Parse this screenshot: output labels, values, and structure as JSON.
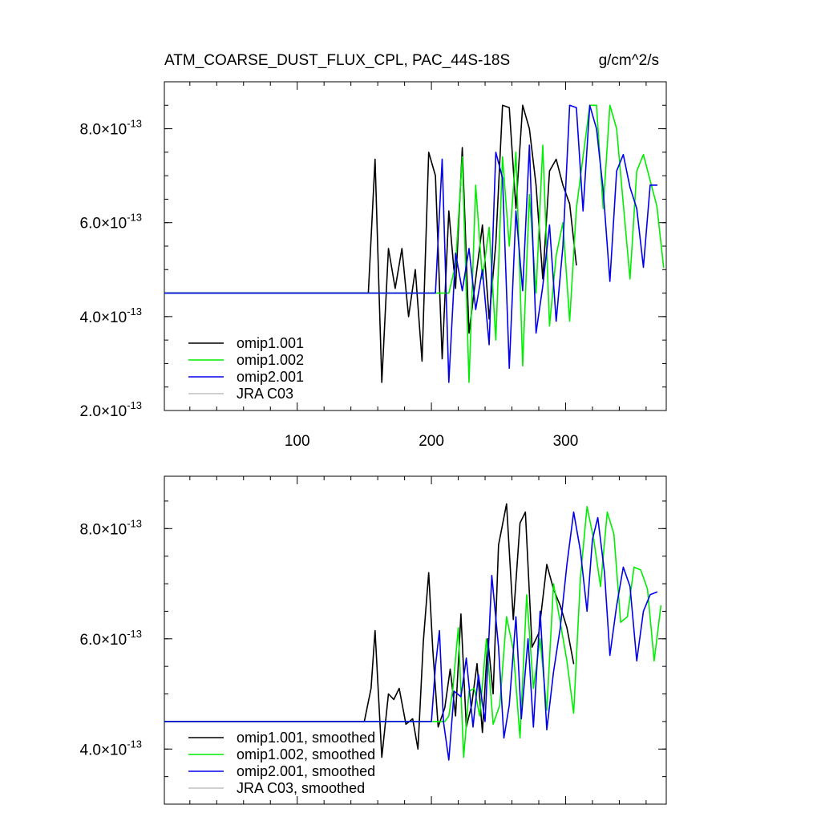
{
  "chart_data": [
    {
      "type": "line",
      "title": "ATM_COARSE_DUST_FLUX_CPL, PAC_44S-18S",
      "units": "g/cm^2/s",
      "xlabel": "",
      "ylabel": "",
      "xlim": [
        1,
        375
      ],
      "ylim": [
        2e-13,
        9e-13
      ],
      "x_ticks": [
        100,
        200,
        300
      ],
      "y_ticks": [
        {
          "value": 2e-13,
          "mantissa": "2.0",
          "exponent": "-13"
        },
        {
          "value": 4e-13,
          "mantissa": "4.0",
          "exponent": "-13"
        },
        {
          "value": 6e-13,
          "mantissa": "6.0",
          "exponent": "-13"
        },
        {
          "value": 8e-13,
          "mantissa": "8.0",
          "exponent": "-13"
        }
      ],
      "legend_position": "bottom-left",
      "series": [
        {
          "name": "omip1.001",
          "color": "#000000",
          "x": [
            1,
            153,
            158,
            163,
            168,
            173,
            178,
            183,
            188,
            193,
            198,
            203,
            208,
            213,
            218,
            223,
            228,
            233,
            238,
            243,
            248,
            253,
            258,
            263,
            268,
            273,
            278,
            283,
            288,
            293,
            298,
            303,
            308
          ],
          "y": [
            4.5e-13,
            4.5e-13,
            7.35e-13,
            2.6e-13,
            5.45e-13,
            4.6e-13,
            5.45e-13,
            4e-13,
            5e-13,
            3.05e-13,
            7.5e-13,
            7e-13,
            3.1e-13,
            6.25e-13,
            4.6e-13,
            7.6e-13,
            3.65e-13,
            4.8e-13,
            5.95e-13,
            3.95e-13,
            5.55e-13,
            8.5e-13,
            8.45e-13,
            6.3e-13,
            8.5e-13,
            8e-13,
            6.8e-13,
            4.8e-13,
            7.1e-13,
            7.35e-13,
            6.8e-13,
            6.4e-13,
            5.1e-13
          ]
        },
        {
          "name": "omip1.002",
          "color": "#00ee00",
          "x": [
            1,
            213,
            218,
            223,
            228,
            233,
            238,
            243,
            248,
            253,
            258,
            263,
            268,
            273,
            278,
            283,
            288,
            293,
            298,
            303,
            308,
            313,
            318,
            323,
            328,
            333,
            338,
            343,
            348,
            353,
            358,
            363,
            368,
            373
          ],
          "y": [
            4.5e-13,
            4.5e-13,
            5.1e-13,
            7.4e-13,
            2.6e-13,
            6.8e-13,
            4.8e-13,
            5.9e-13,
            3.5e-13,
            7.4e-13,
            5.5e-13,
            7.5e-13,
            2.95e-13,
            6.6e-13,
            4.5e-13,
            7.65e-13,
            3.8e-13,
            5.3e-13,
            6e-13,
            3.9e-13,
            6.3e-13,
            7.4e-13,
            8.5e-13,
            8.5e-13,
            6.3e-13,
            8.5e-13,
            8e-13,
            6.4e-13,
            4.8e-13,
            7.1e-13,
            7.45e-13,
            6.9e-13,
            6.35e-13,
            5.05e-13
          ]
        },
        {
          "name": "omip2.001",
          "color": "#0000ee",
          "x": [
            1,
            203,
            208,
            213,
            218,
            223,
            228,
            233,
            238,
            243,
            248,
            253,
            258,
            263,
            268,
            273,
            278,
            283,
            288,
            293,
            298,
            303,
            308,
            313,
            318,
            323,
            328,
            333,
            338,
            343,
            348,
            353,
            358,
            363,
            368
          ],
          "y": [
            4.5e-13,
            4.5e-13,
            7.35e-13,
            2.6e-13,
            5.35e-13,
            4.55e-13,
            5.45e-13,
            4.15e-13,
            5e-13,
            3.4e-13,
            7.5e-13,
            6.95e-13,
            2.9e-13,
            6.25e-13,
            4.55e-13,
            7.65e-13,
            3.65e-13,
            4.65e-13,
            5.95e-13,
            3.9e-13,
            5.5e-13,
            8.5e-13,
            8.45e-13,
            6.25e-13,
            8.5e-13,
            8e-13,
            6.7e-13,
            4.75e-13,
            7.1e-13,
            7.45e-13,
            6.75e-13,
            6.3e-13,
            5.05e-13,
            6.8e-13,
            6.8e-13
          ]
        },
        {
          "name": "JRA C03",
          "color": "#c0c0c0",
          "x": [],
          "y": []
        }
      ]
    },
    {
      "type": "line",
      "title": "",
      "xlabel": "",
      "ylabel": "",
      "xlim": [
        1,
        375
      ],
      "ylim": [
        3e-13,
        8.95e-13
      ],
      "x_ticks": [
        100,
        200,
        300
      ],
      "y_ticks": [
        {
          "value": 4e-13,
          "mantissa": "4.0",
          "exponent": "-13"
        },
        {
          "value": 6e-13,
          "mantissa": "6.0",
          "exponent": "-13"
        },
        {
          "value": 8e-13,
          "mantissa": "8.0",
          "exponent": "-13"
        }
      ],
      "legend_position": "bottom-left",
      "series": [
        {
          "name": "omip1.001, smoothed",
          "color": "#000000",
          "x": [
            1,
            150,
            155,
            158,
            163,
            168,
            172,
            176,
            181,
            186,
            190,
            194,
            198,
            201,
            205,
            210,
            214,
            218,
            222,
            226,
            230,
            234,
            238,
            242,
            246,
            250,
            256,
            261,
            266,
            270,
            275,
            280,
            286,
            291,
            296,
            301,
            306
          ],
          "y": [
            4.5e-13,
            4.5e-13,
            5.1e-13,
            6.15e-13,
            3.85e-13,
            5e-13,
            4.9e-13,
            5.1e-13,
            4.45e-13,
            4.55e-13,
            4e-13,
            5.95e-13,
            7.2e-13,
            5.8e-13,
            4.4e-13,
            4.75e-13,
            5.45e-13,
            4.6e-13,
            6.45e-13,
            4.4e-13,
            4.8e-13,
            5.55e-13,
            4.3e-13,
            6e-13,
            5e-13,
            7.7e-13,
            8.45e-13,
            6.35e-13,
            8.1e-13,
            8.3e-13,
            5.85e-13,
            6.1e-13,
            7.35e-13,
            6.9e-13,
            6.6e-13,
            6.2e-13,
            5.55e-13
          ]
        },
        {
          "name": "omip1.002, smoothed",
          "color": "#00ee00",
          "x": [
            1,
            210,
            213,
            216,
            220,
            224,
            228,
            232,
            236,
            241,
            246,
            251,
            256,
            261,
            266,
            271,
            276,
            281,
            286,
            291,
            296,
            301,
            306,
            311,
            316,
            321,
            326,
            331,
            336,
            341,
            346,
            351,
            356,
            361,
            366,
            371
          ],
          "y": [
            4.5e-13,
            4.5e-13,
            4.6e-13,
            5.1e-13,
            6.2e-13,
            3.85e-13,
            5.05e-13,
            5.1e-13,
            4.6e-13,
            6e-13,
            4.45e-13,
            4.8e-13,
            6.4e-13,
            5.8e-13,
            4.2e-13,
            6.8e-13,
            5.1e-13,
            6e-13,
            4.7e-13,
            7e-13,
            6.3e-13,
            5.6e-13,
            4.65e-13,
            7.1e-13,
            8.4e-13,
            7.8e-13,
            6.95e-13,
            8.3e-13,
            7.9e-13,
            6.3e-13,
            6.4e-13,
            7.3e-13,
            7.25e-13,
            6.9e-13,
            5.6e-13,
            6.6e-13
          ]
        },
        {
          "name": "omip2.001, smoothed",
          "color": "#0000ee",
          "x": [
            1,
            200,
            203,
            206,
            209,
            213,
            217,
            222,
            226,
            231,
            235,
            240,
            245,
            250,
            254,
            258,
            263,
            267,
            272,
            276,
            281,
            286,
            291,
            296,
            301,
            306,
            311,
            316,
            320,
            324,
            329,
            333,
            338,
            343,
            348,
            353,
            358,
            363,
            368
          ],
          "y": [
            4.5e-13,
            4.5e-13,
            5.5e-13,
            6.15e-13,
            4.5e-13,
            3.8e-13,
            5.05e-13,
            4.95e-13,
            5.65e-13,
            4.4e-13,
            5.35e-13,
            4.5e-13,
            7.15e-13,
            5.85e-13,
            4.2e-13,
            4.8e-13,
            6.4e-13,
            4.55e-13,
            6e-13,
            4.4e-13,
            6.5e-13,
            4.35e-13,
            5.4e-13,
            6.2e-13,
            7.35e-13,
            8.3e-13,
            7.6e-13,
            6.5e-13,
            7.8e-13,
            8.2e-13,
            7.2e-13,
            5.7e-13,
            6.6e-13,
            7.3e-13,
            6.95e-13,
            5.6e-13,
            6.5e-13,
            6.8e-13,
            6.85e-13
          ]
        },
        {
          "name": "JRA C03, smoothed",
          "color": "#c0c0c0",
          "x": [],
          "y": []
        }
      ]
    }
  ]
}
